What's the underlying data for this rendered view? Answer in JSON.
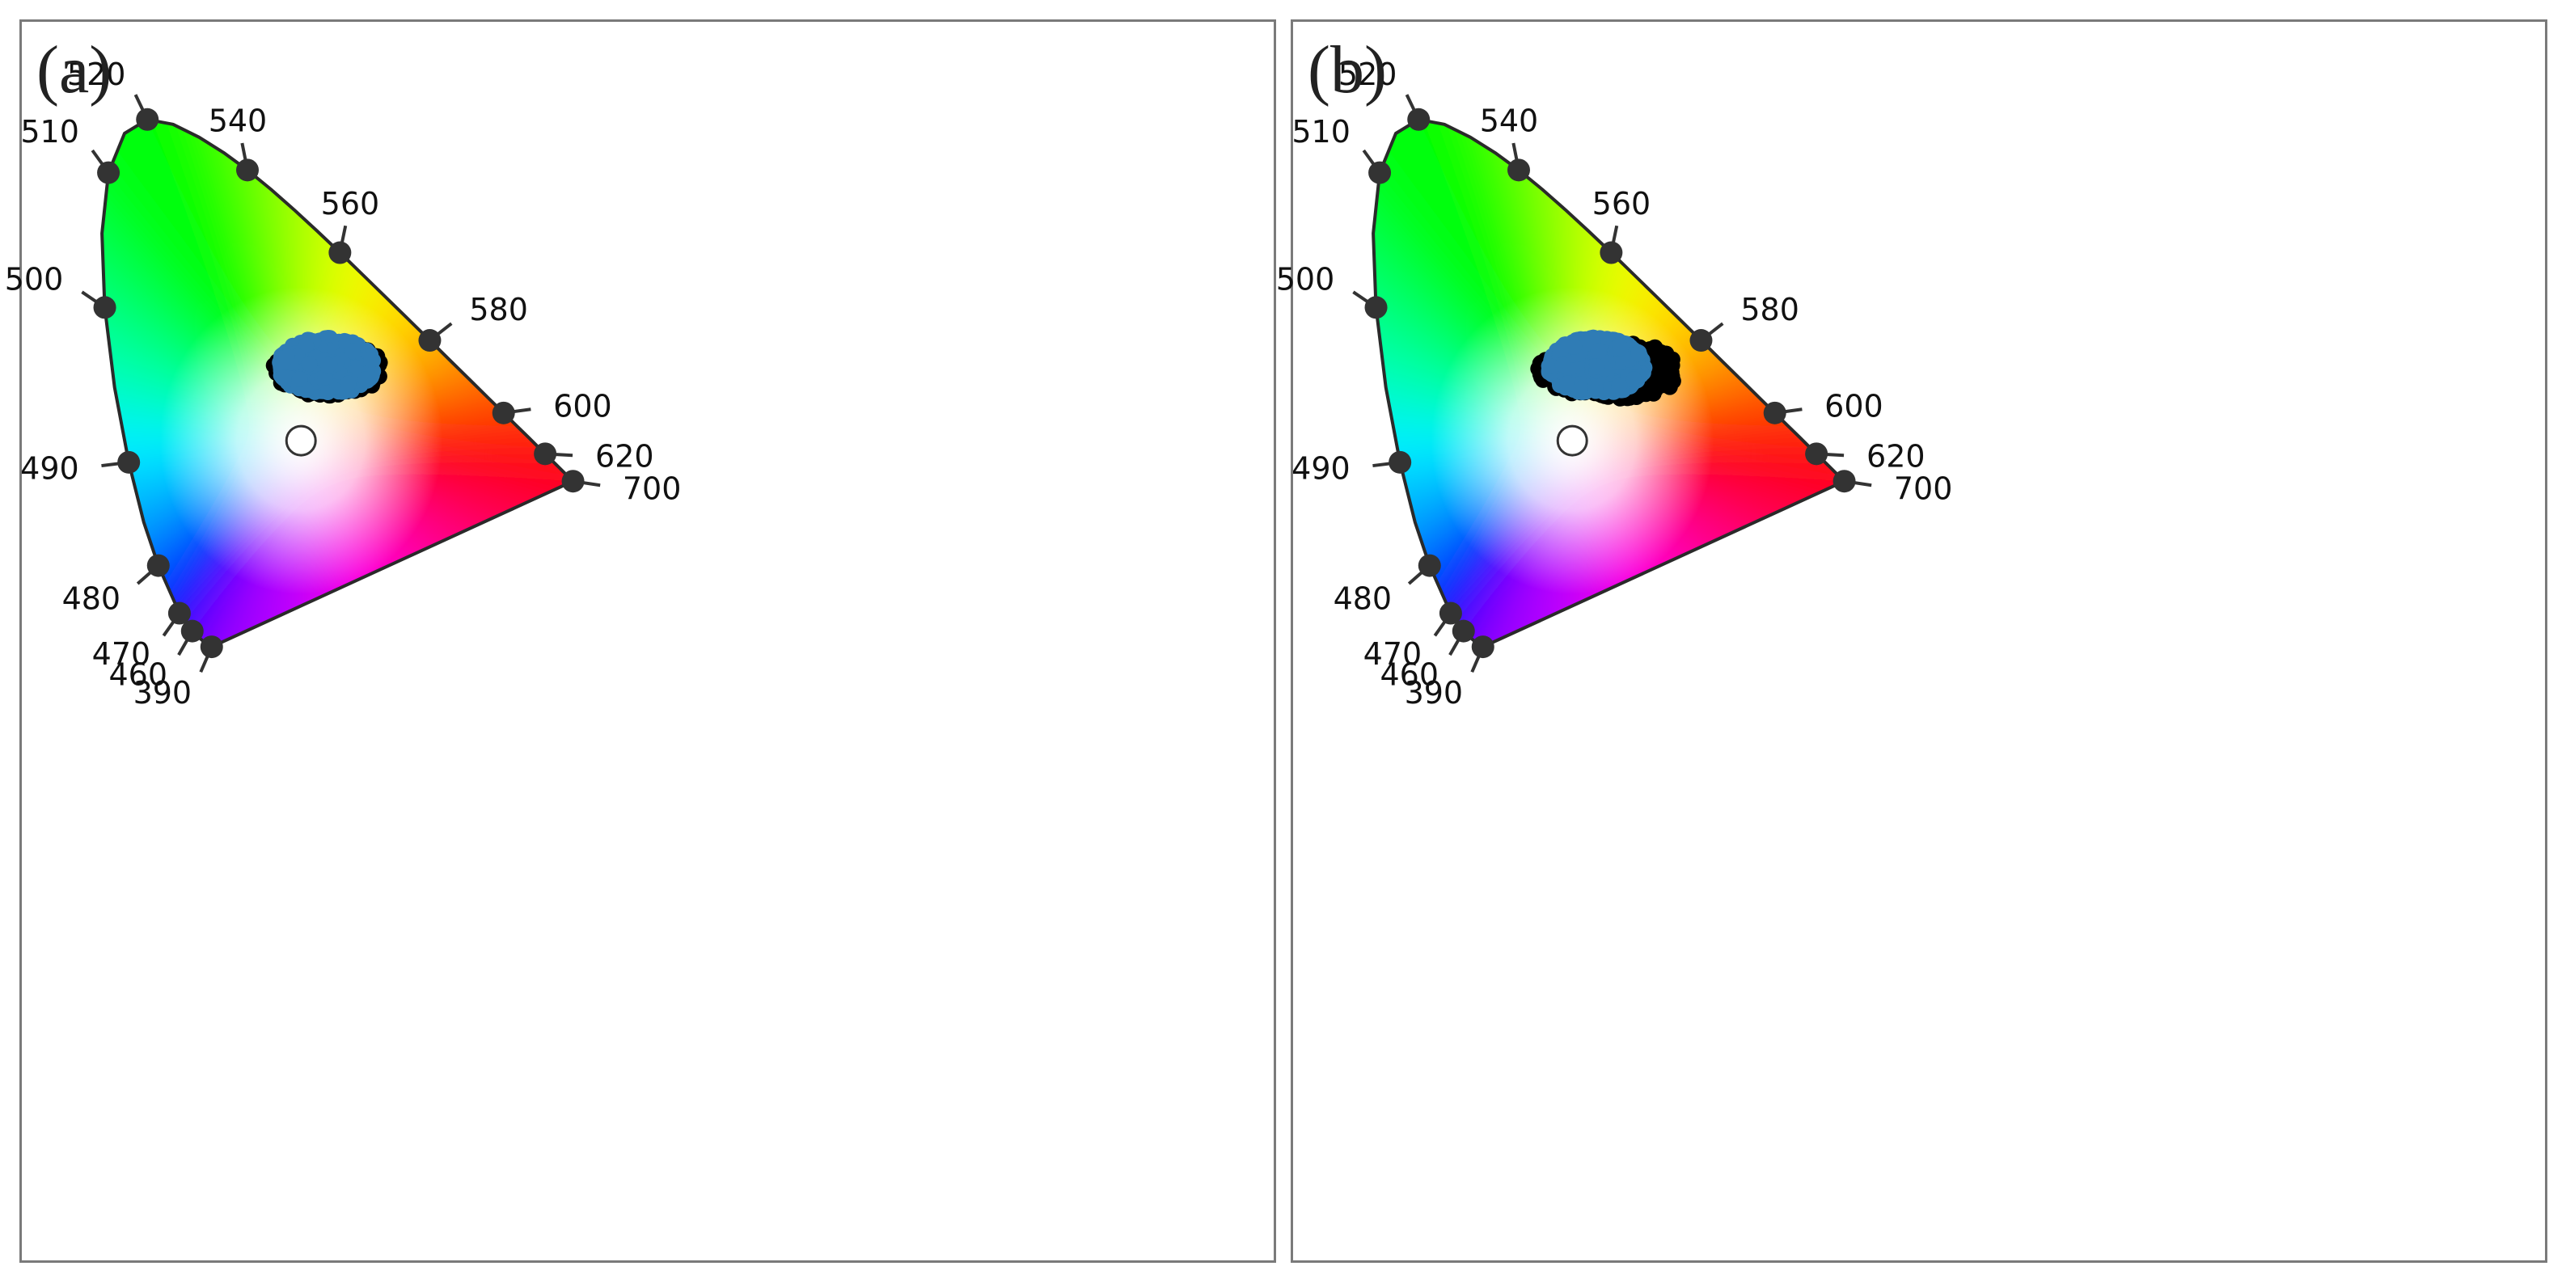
{
  "figure": {
    "background": "#ffffff",
    "border_color": "#7a7a7a",
    "locus_color": "#2a2a2a",
    "marker_color": "#333333",
    "white_point_color": "#ffffff"
  },
  "chart_data": [
    {
      "type": "scatter",
      "panel_label": "(a)",
      "diagram": "CIE 1931 chromaticity diagram",
      "axes": "hidden",
      "grid": false,
      "legend": "none",
      "wavelength_ticks": [
        {
          "label": "390",
          "x": 0.1741,
          "y": 0.005
        },
        {
          "label": "460",
          "x": 0.144,
          "y": 0.0297
        },
        {
          "label": "470",
          "x": 0.1241,
          "y": 0.0578
        },
        {
          "label": "480",
          "x": 0.0913,
          "y": 0.1327
        },
        {
          "label": "490",
          "x": 0.0454,
          "y": 0.295
        },
        {
          "label": "500",
          "x": 0.0082,
          "y": 0.5384
        },
        {
          "label": "510",
          "x": 0.0139,
          "y": 0.7502
        },
        {
          "label": "520",
          "x": 0.0743,
          "y": 0.8338
        },
        {
          "label": "540",
          "x": 0.2296,
          "y": 0.7543
        },
        {
          "label": "560",
          "x": 0.3731,
          "y": 0.6245
        },
        {
          "label": "580",
          "x": 0.5125,
          "y": 0.4866
        },
        {
          "label": "600",
          "x": 0.627,
          "y": 0.3725
        },
        {
          "label": "620",
          "x": 0.6915,
          "y": 0.3083
        },
        {
          "label": "700",
          "x": 0.7347,
          "y": 0.2653
        }
      ],
      "white_point": {
        "x": 0.3127,
        "y": 0.329
      },
      "series": [
        {
          "color": "#000000",
          "x_range": [
            0.265,
            0.435
          ],
          "y_range": [
            0.4,
            0.487
          ],
          "center": [
            0.355,
            0.442
          ],
          "count": 320
        },
        {
          "color": "#2f7cb5",
          "x_range": [
            0.275,
            0.425
          ],
          "y_range": [
            0.405,
            0.495
          ],
          "center": [
            0.352,
            0.446
          ],
          "count": 650
        }
      ]
    },
    {
      "type": "scatter",
      "panel_label": "(b)",
      "diagram": "CIE 1931 chromaticity diagram",
      "axes": "hidden",
      "grid": false,
      "legend": "none",
      "wavelength_ticks": [
        {
          "label": "390",
          "x": 0.1741,
          "y": 0.005
        },
        {
          "label": "460",
          "x": 0.144,
          "y": 0.0297
        },
        {
          "label": "470",
          "x": 0.1241,
          "y": 0.0578
        },
        {
          "label": "480",
          "x": 0.0913,
          "y": 0.1327
        },
        {
          "label": "490",
          "x": 0.0454,
          "y": 0.295
        },
        {
          "label": "500",
          "x": 0.0082,
          "y": 0.5384
        },
        {
          "label": "510",
          "x": 0.0139,
          "y": 0.7502
        },
        {
          "label": "520",
          "x": 0.0743,
          "y": 0.8338
        },
        {
          "label": "540",
          "x": 0.2296,
          "y": 0.7543
        },
        {
          "label": "560",
          "x": 0.3731,
          "y": 0.6245
        },
        {
          "label": "580",
          "x": 0.5125,
          "y": 0.4866
        },
        {
          "label": "600",
          "x": 0.627,
          "y": 0.3725
        },
        {
          "label": "620",
          "x": 0.6915,
          "y": 0.3083
        },
        {
          "label": "700",
          "x": 0.7347,
          "y": 0.2653
        }
      ],
      "white_point": {
        "x": 0.3127,
        "y": 0.329
      },
      "series": [
        {
          "color": "#000000",
          "x_range": [
            0.24,
            0.47
          ],
          "y_range": [
            0.395,
            0.485
          ],
          "center": [
            0.375,
            0.44
          ],
          "count": 380
        },
        {
          "color": "#2f7cb5",
          "x_range": [
            0.275,
            0.425
          ],
          "y_range": [
            0.405,
            0.495
          ],
          "center": [
            0.35,
            0.446
          ],
          "count": 650
        }
      ]
    }
  ]
}
